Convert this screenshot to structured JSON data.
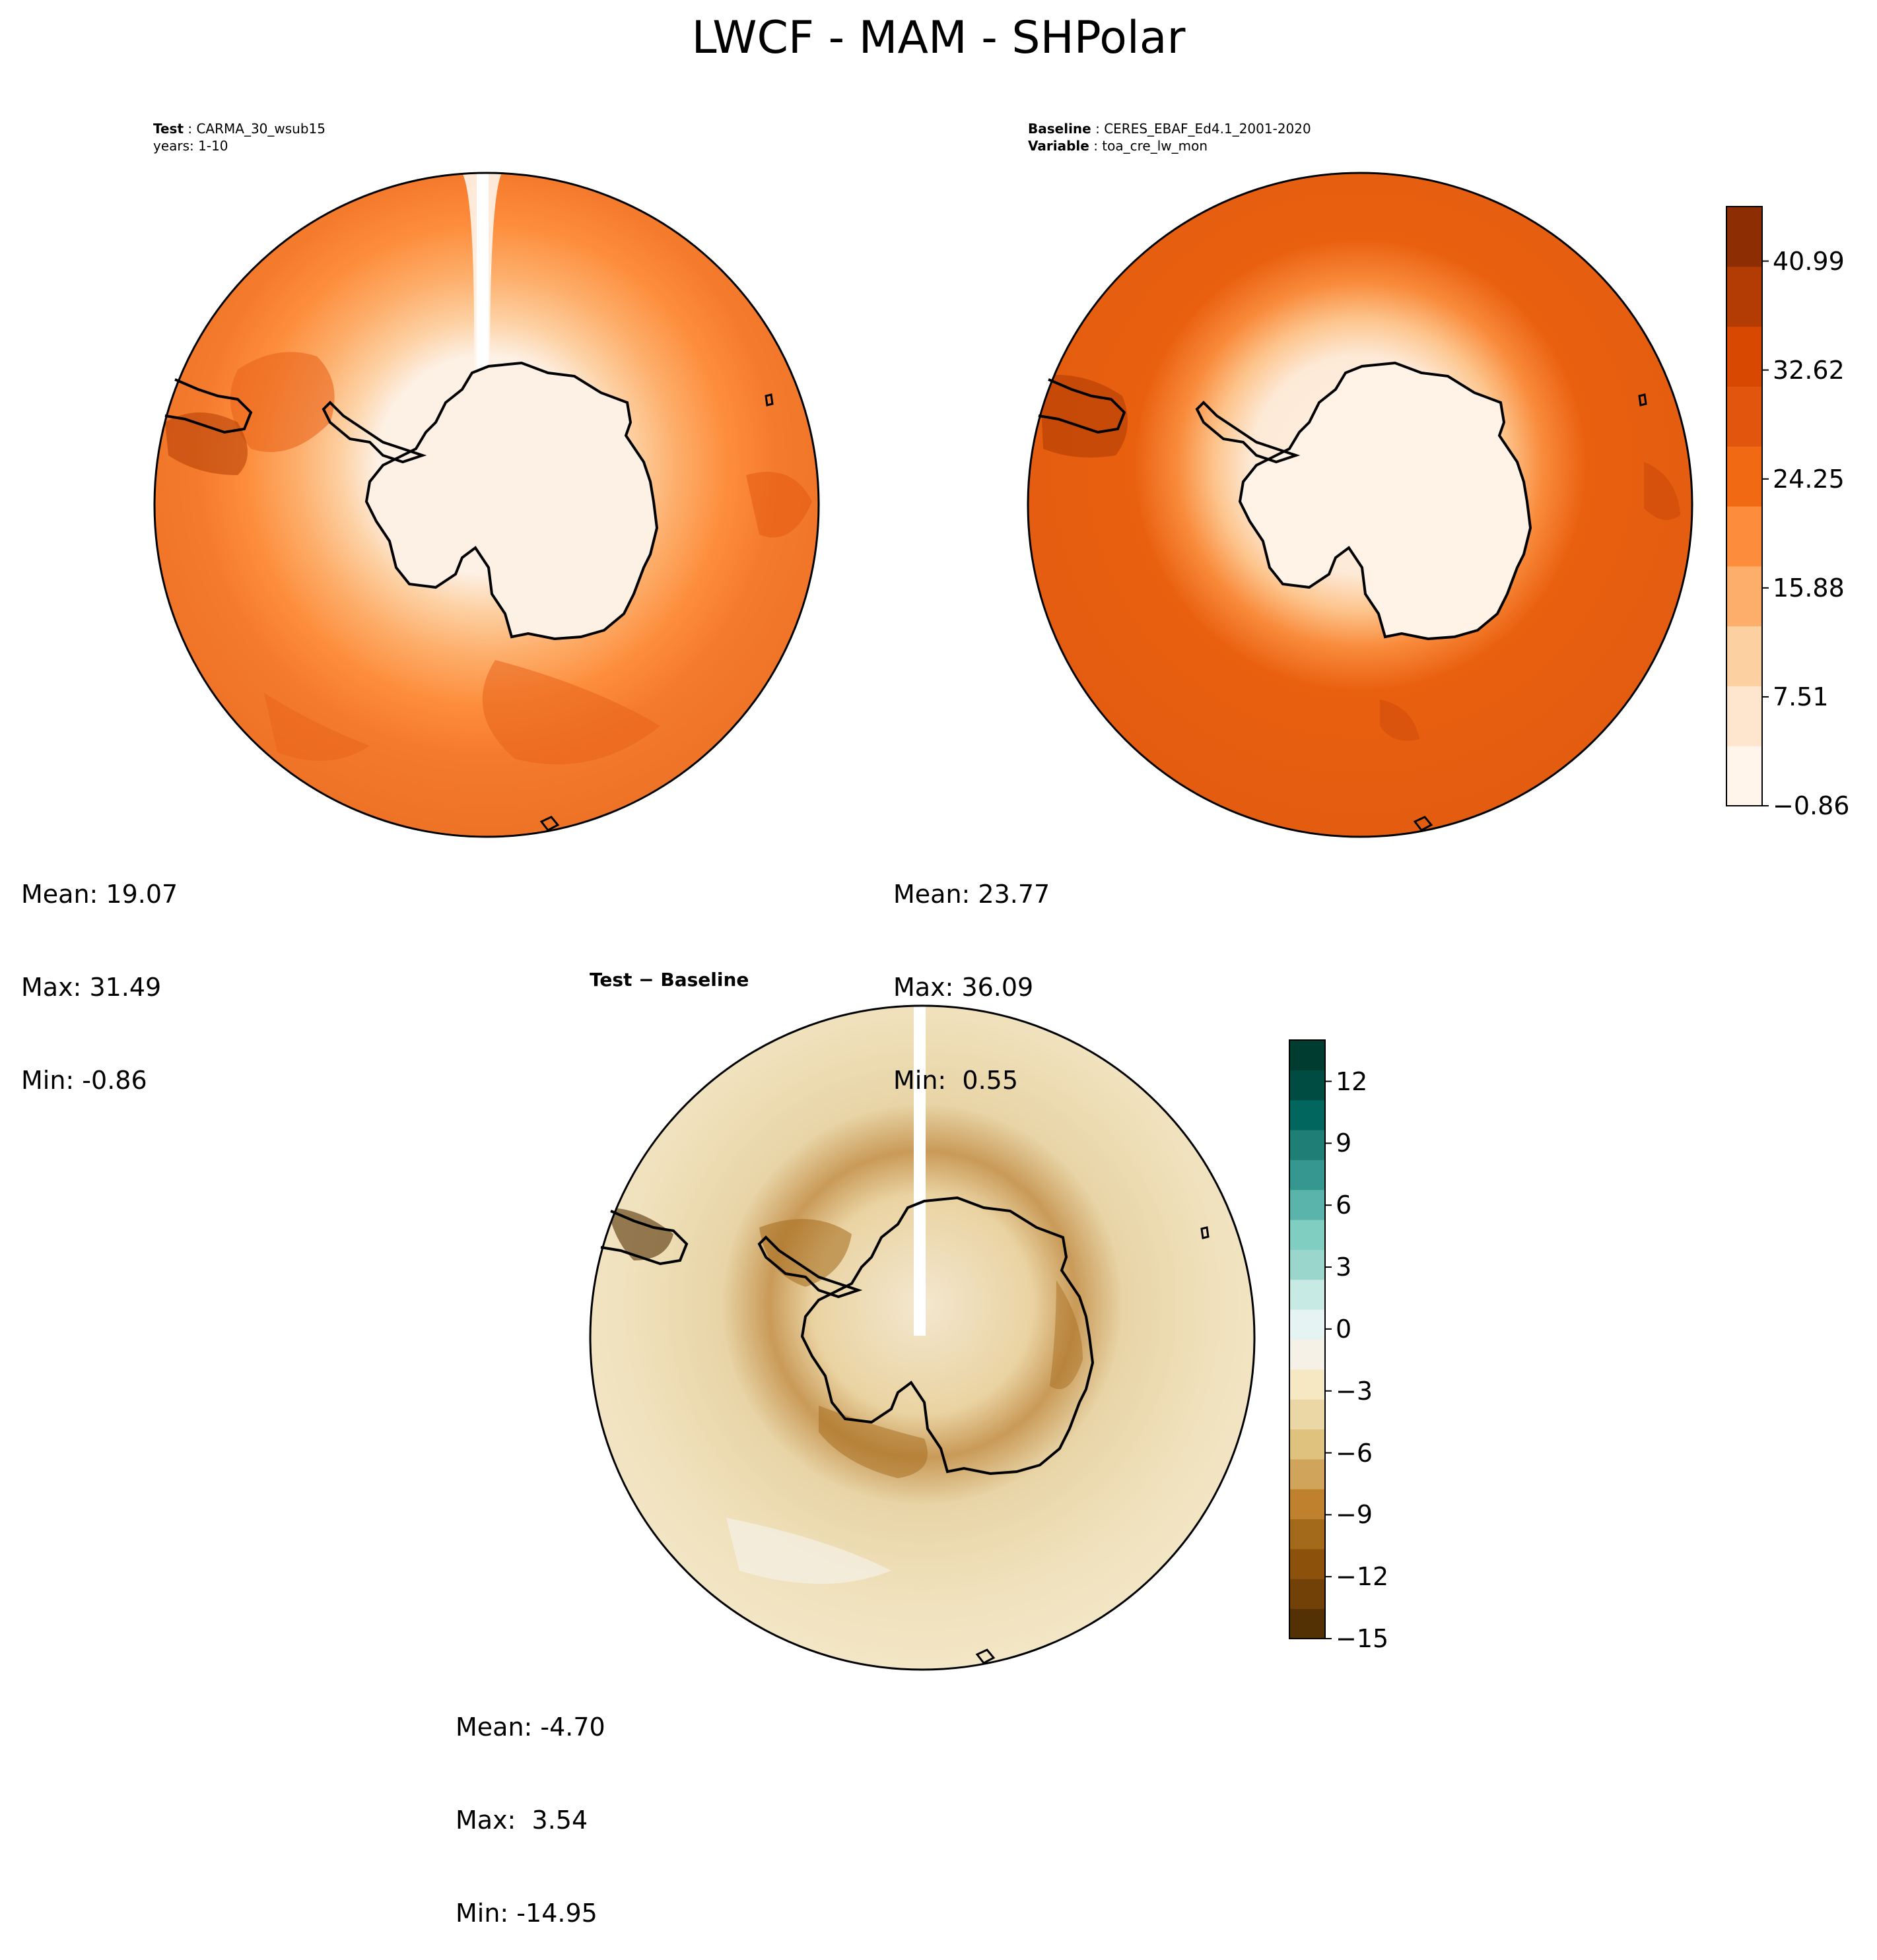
{
  "figure_title": "LWCF - MAM - SHPolar",
  "panels": {
    "test": {
      "title_key": "Test",
      "title_value": "CARMA_30_wsub15",
      "subtitle": "years: 1-10",
      "stats": {
        "mean": "Mean: 19.07",
        "max": "Max: 31.49",
        "min": "Min: -0.86"
      }
    },
    "baseline": {
      "title_key": "Baseline",
      "title_value": "CERES_EBAF_Ed4.1_2001-2020",
      "var_key": "Variable",
      "var_value": "toa_cre_lw_mon",
      "stats": {
        "mean": "Mean: 23.77",
        "max": "Max: 36.09",
        "min": "Min:  0.55"
      }
    },
    "diff": {
      "title": "Test − Baseline",
      "stats": {
        "mean": "Mean: -4.70",
        "max": "Max:  3.54",
        "min": "Min: -14.95"
      }
    }
  },
  "colors": {
    "land_ice": "#fdf0e4",
    "ocean_main": "#f07a2a",
    "ocean_baseline": "#e4600f",
    "cb_orange": [
      "#fff5eb",
      "#fee6ce",
      "#fdd0a2",
      "#fdae6b",
      "#fd8d3c",
      "#f16913",
      "#e2550c",
      "#d94801",
      "#b33c04",
      "#8c2d04"
    ],
    "cb_diff": [
      "#543005",
      "#714108",
      "#8c510a",
      "#a46a1c",
      "#bf812d",
      "#d0a45a",
      "#dfc27d",
      "#ebd7a6",
      "#f6e8c3",
      "#f5f1e7",
      "#e5f3f2",
      "#c7eae5",
      "#9ad6cc",
      "#80cdc1",
      "#5ab4ac",
      "#35978f",
      "#1f7f77",
      "#01665e",
      "#004c42",
      "#003c30"
    ]
  },
  "chart_data": [
    {
      "type": "heatmap",
      "name": "Test",
      "colorbar_ticks": [
        "−0.86",
        "7.51",
        "15.88",
        "24.25",
        "32.62",
        "40.99"
      ],
      "colorbar_range": [
        -0.86,
        45.18
      ],
      "mean": 19.07,
      "max": 31.49,
      "min": -0.86
    },
    {
      "type": "heatmap",
      "name": "Baseline",
      "colorbar_ticks": [
        "−0.86",
        "7.51",
        "15.88",
        "24.25",
        "32.62",
        "40.99"
      ],
      "colorbar_range": [
        -0.86,
        45.18
      ],
      "mean": 23.77,
      "max": 36.09,
      "min": 0.55
    },
    {
      "type": "heatmap",
      "name": "Test − Baseline",
      "colorbar_ticks": [
        "−15",
        "−12",
        "−9",
        "−6",
        "−3",
        "0",
        "3",
        "6",
        "9",
        "12"
      ],
      "colorbar_range": [
        -15,
        14
      ],
      "mean": -4.7,
      "max": 3.54,
      "min": -14.95
    }
  ]
}
